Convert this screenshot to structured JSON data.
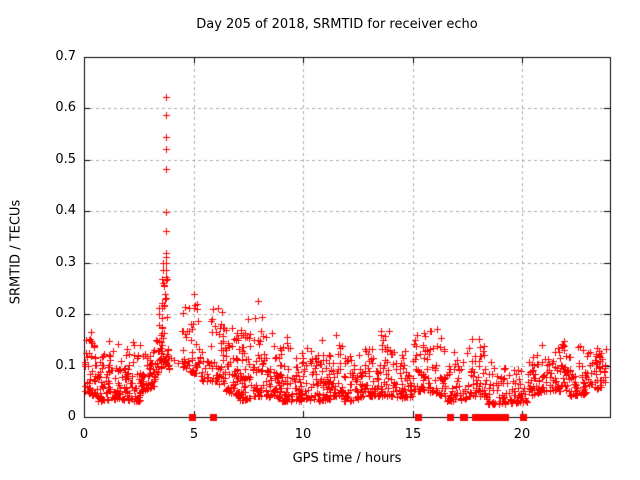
{
  "chart_data": {
    "type": "scatter",
    "title": "Day 205 of 2018, SRMTID for receiver echo",
    "xlabel": "GPS time / hours",
    "ylabel": "SRMTID / TECUs",
    "xlim": [
      0,
      24
    ],
    "ylim": [
      0,
      0.7
    ],
    "xtick_values": [
      0,
      5,
      10,
      15,
      20
    ],
    "xtick_labels": [
      "0",
      "5",
      "10",
      "15",
      "20"
    ],
    "ytick_values": [
      0,
      0.1,
      0.2,
      0.3,
      0.4,
      0.5,
      0.6,
      0.7
    ],
    "ytick_labels": [
      "0",
      "0.1",
      "0.2",
      "0.3",
      "0.4",
      "0.5",
      "0.6",
      "0.7"
    ],
    "grid": true,
    "grid_style": "dashed",
    "legend": "none",
    "marker": "plus-cross",
    "zero_marker": "filled-square",
    "colors": {
      "points": "#ff0000",
      "grid": "#b0b0b0",
      "axis": "#000000",
      "background": "#ffffff",
      "text": "#000000"
    },
    "notable_points": [
      [
        3.74,
        0.622
      ],
      [
        3.73,
        0.587
      ],
      [
        3.74,
        0.544
      ],
      [
        3.73,
        0.522
      ],
      [
        3.74,
        0.482
      ],
      [
        3.75,
        0.399
      ],
      [
        3.74,
        0.362
      ],
      [
        3.75,
        0.318
      ],
      [
        3.73,
        0.311
      ],
      [
        3.74,
        0.3
      ],
      [
        3.72,
        0.285
      ],
      [
        3.75,
        0.272
      ],
      [
        3.6,
        0.3
      ],
      [
        3.62,
        0.285
      ],
      [
        3.58,
        0.268
      ],
      [
        3.65,
        0.255
      ],
      [
        3.55,
        0.222
      ],
      [
        3.68,
        0.24
      ],
      [
        3.7,
        0.23
      ],
      [
        3.95,
        0.115
      ],
      [
        4.1,
        0.11
      ],
      [
        4.3,
        0.105
      ],
      [
        0.3,
        0.165
      ],
      [
        1.15,
        0.148
      ],
      [
        2.25,
        0.146
      ],
      [
        2.3,
        0.14
      ],
      [
        4.6,
        0.213
      ],
      [
        5.0,
        0.24
      ],
      [
        5.15,
        0.22
      ],
      [
        6.1,
        0.212
      ],
      [
        6.3,
        0.205
      ],
      [
        7.5,
        0.19
      ],
      [
        7.94,
        0.226
      ],
      [
        8.1,
        0.195
      ],
      [
        8.6,
        0.163
      ],
      [
        9.24,
        0.155
      ],
      [
        10.85,
        0.15
      ],
      [
        11.5,
        0.16
      ],
      [
        13.9,
        0.168
      ],
      [
        15.5,
        0.163
      ],
      [
        16.1,
        0.172
      ],
      [
        18.0,
        0.152
      ],
      [
        20.9,
        0.14
      ],
      [
        21.9,
        0.148
      ],
      [
        21.8,
        0.142
      ],
      [
        23.4,
        0.135
      ]
    ],
    "zero_value_times": [
      4.94,
      5.88,
      15.25,
      16.72,
      17.28,
      17.36,
      17.84,
      17.92,
      18.0,
      18.08,
      18.16,
      18.24,
      18.42,
      18.5,
      18.66,
      18.74,
      18.82,
      19.0,
      19.08,
      19.2,
      20.05
    ],
    "density_bands": [
      {
        "x0": 0.02,
        "x1": 0.5,
        "n": 40,
        "yA": [
          0.05,
          0.17
        ],
        "yB": [
          0.04,
          0.14
        ],
        "bias": 2.0
      },
      {
        "x0": 0.5,
        "x1": 1.5,
        "n": 75,
        "yA": [
          0.03,
          0.13
        ],
        "yB": [
          0.035,
          0.13
        ],
        "bias": 2.0
      },
      {
        "x0": 1.5,
        "x1": 2.6,
        "n": 85,
        "yA": [
          0.035,
          0.145
        ],
        "yB": [
          0.03,
          0.14
        ],
        "bias": 2.2
      },
      {
        "x0": 2.6,
        "x1": 3.2,
        "n": 50,
        "yA": [
          0.05,
          0.12
        ],
        "yB": [
          0.06,
          0.13
        ],
        "bias": 2.0
      },
      {
        "x0": 3.2,
        "x1": 3.55,
        "n": 32,
        "yA": [
          0.07,
          0.16
        ],
        "yB": [
          0.1,
          0.24
        ],
        "bias": 1.6
      },
      {
        "x0": 3.55,
        "x1": 3.8,
        "n": 30,
        "yA": [
          0.1,
          0.31
        ],
        "yB": [
          0.1,
          0.28
        ],
        "bias": 1.5
      },
      {
        "x0": 3.8,
        "x1": 3.95,
        "n": 8,
        "yA": [
          0.1,
          0.18
        ],
        "yB": [
          0.09,
          0.15
        ],
        "bias": 1.8
      },
      {
        "x0": 4.45,
        "x1": 4.75,
        "n": 16,
        "yA": [
          0.1,
          0.215
        ],
        "yB": [
          0.09,
          0.18
        ],
        "bias": 1.8
      },
      {
        "x0": 4.8,
        "x1": 5.35,
        "n": 34,
        "yA": [
          0.09,
          0.245
        ],
        "yB": [
          0.08,
          0.2
        ],
        "bias": 1.9
      },
      {
        "x0": 5.35,
        "x1": 5.8,
        "n": 14,
        "yA": [
          0.07,
          0.13
        ],
        "yB": [
          0.07,
          0.12
        ],
        "bias": 1.8
      },
      {
        "x0": 5.8,
        "x1": 6.45,
        "n": 48,
        "yA": [
          0.07,
          0.215
        ],
        "yB": [
          0.06,
          0.19
        ],
        "bias": 2.0
      },
      {
        "x0": 6.45,
        "x1": 7.1,
        "n": 62,
        "yA": [
          0.05,
          0.19
        ],
        "yB": [
          0.04,
          0.16
        ],
        "bias": 2.2
      },
      {
        "x0": 7.1,
        "x1": 7.75,
        "n": 58,
        "yA": [
          0.03,
          0.17
        ],
        "yB": [
          0.04,
          0.19
        ],
        "bias": 2.3
      },
      {
        "x0": 7.75,
        "x1": 8.35,
        "n": 48,
        "yA": [
          0.04,
          0.2
        ],
        "yB": [
          0.04,
          0.16
        ],
        "bias": 2.2
      },
      {
        "x0": 8.35,
        "x1": 9.0,
        "n": 52,
        "yA": [
          0.04,
          0.165
        ],
        "yB": [
          0.035,
          0.15
        ],
        "bias": 2.2
      },
      {
        "x0": 9.0,
        "x1": 9.75,
        "n": 48,
        "yA": [
          0.03,
          0.155
        ],
        "yB": [
          0.03,
          0.13
        ],
        "bias": 2.2
      },
      {
        "x0": 9.75,
        "x1": 10.6,
        "n": 56,
        "yA": [
          0.03,
          0.12
        ],
        "yB": [
          0.035,
          0.15
        ],
        "bias": 2.2
      },
      {
        "x0": 10.6,
        "x1": 11.3,
        "n": 52,
        "yA": [
          0.03,
          0.13
        ],
        "yB": [
          0.035,
          0.12
        ],
        "bias": 2.2
      },
      {
        "x0": 11.3,
        "x1": 11.85,
        "n": 38,
        "yA": [
          0.04,
          0.16
        ],
        "yB": [
          0.04,
          0.14
        ],
        "bias": 2.2
      },
      {
        "x0": 11.85,
        "x1": 12.7,
        "n": 56,
        "yA": [
          0.03,
          0.12
        ],
        "yB": [
          0.035,
          0.125
        ],
        "bias": 2.2
      },
      {
        "x0": 12.7,
        "x1": 13.5,
        "n": 52,
        "yA": [
          0.04,
          0.135
        ],
        "yB": [
          0.04,
          0.13
        ],
        "bias": 2.2
      },
      {
        "x0": 13.5,
        "x1": 14.2,
        "n": 46,
        "yA": [
          0.04,
          0.17
        ],
        "yB": [
          0.04,
          0.155
        ],
        "bias": 2.2
      },
      {
        "x0": 14.2,
        "x1": 15.0,
        "n": 50,
        "yA": [
          0.035,
          0.13
        ],
        "yB": [
          0.04,
          0.13
        ],
        "bias": 2.2
      },
      {
        "x0": 15.0,
        "x1": 15.7,
        "n": 42,
        "yA": [
          0.05,
          0.165
        ],
        "yB": [
          0.05,
          0.155
        ],
        "bias": 2.1
      },
      {
        "x0": 15.7,
        "x1": 16.5,
        "n": 46,
        "yA": [
          0.05,
          0.175
        ],
        "yB": [
          0.04,
          0.15
        ],
        "bias": 2.1
      },
      {
        "x0": 16.5,
        "x1": 17.5,
        "n": 48,
        "yA": [
          0.03,
          0.135
        ],
        "yB": [
          0.035,
          0.13
        ],
        "bias": 2.2
      },
      {
        "x0": 17.5,
        "x1": 18.35,
        "n": 52,
        "yA": [
          0.04,
          0.155
        ],
        "yB": [
          0.04,
          0.14
        ],
        "bias": 2.2
      },
      {
        "x0": 18.35,
        "x1": 19.3,
        "n": 52,
        "yA": [
          0.025,
          0.11
        ],
        "yB": [
          0.025,
          0.1
        ],
        "bias": 2.2
      },
      {
        "x0": 19.3,
        "x1": 20.25,
        "n": 46,
        "yA": [
          0.025,
          0.1
        ],
        "yB": [
          0.03,
          0.1
        ],
        "bias": 2.2
      },
      {
        "x0": 20.25,
        "x1": 21.0,
        "n": 48,
        "yA": [
          0.04,
          0.13
        ],
        "yB": [
          0.05,
          0.14
        ],
        "bias": 2.1
      },
      {
        "x0": 21.0,
        "x1": 22.1,
        "n": 62,
        "yA": [
          0.05,
          0.15
        ],
        "yB": [
          0.05,
          0.15
        ],
        "bias": 1.9
      },
      {
        "x0": 22.1,
        "x1": 23.0,
        "n": 56,
        "yA": [
          0.04,
          0.145
        ],
        "yB": [
          0.045,
          0.135
        ],
        "bias": 2.1
      },
      {
        "x0": 23.0,
        "x1": 23.82,
        "n": 48,
        "yA": [
          0.05,
          0.14
        ],
        "yB": [
          0.06,
          0.135
        ],
        "bias": 1.9
      }
    ]
  }
}
